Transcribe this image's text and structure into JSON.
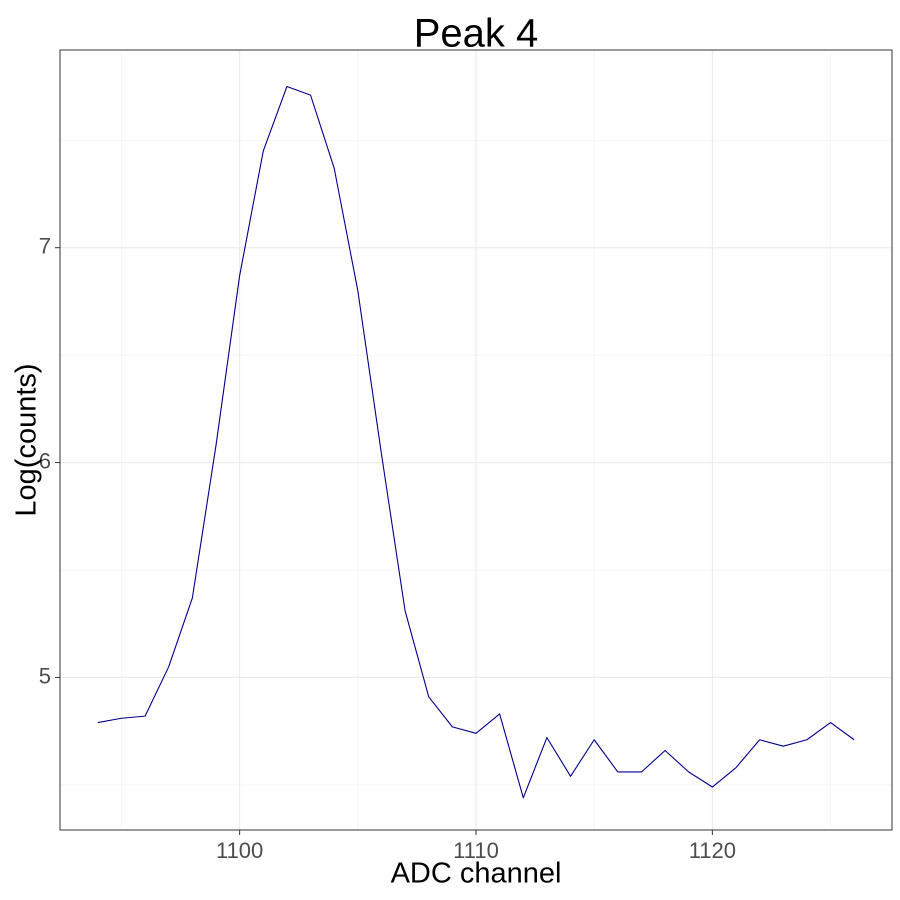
{
  "chart_data": {
    "type": "line",
    "title": "Peak 4",
    "xlabel": "ADC channel",
    "ylabel": "Log(counts)",
    "xlim": [
      1092.4,
      1127.6
    ],
    "ylim": [
      4.29,
      7.92
    ],
    "x_ticks": [
      1100,
      1110,
      1120
    ],
    "x_tick_labels": [
      "1100",
      "1110",
      "1120"
    ],
    "x_minor": [
      1095,
      1105,
      1115,
      1125
    ],
    "y_ticks": [
      5,
      6,
      7
    ],
    "y_tick_labels": [
      "5",
      "6",
      "7"
    ],
    "y_minor": [
      4.5,
      5.5,
      6.5,
      7.5
    ],
    "grid": true,
    "line_color": "#00008B",
    "series": [
      {
        "x": [
          1094,
          1095,
          1096,
          1097,
          1098,
          1099,
          1100,
          1101,
          1102,
          1103,
          1104,
          1105,
          1106,
          1107,
          1108,
          1109,
          1110,
          1111,
          1112,
          1113,
          1114,
          1115,
          1116,
          1117,
          1118,
          1119,
          1120,
          1121,
          1122,
          1123,
          1124,
          1125,
          1126
        ],
        "y": [
          4.79,
          4.81,
          4.82,
          5.05,
          5.37,
          6.08,
          6.87,
          7.45,
          7.75,
          7.71,
          7.37,
          6.8,
          6.04,
          5.31,
          4.91,
          4.77,
          4.74,
          4.83,
          4.44,
          4.72,
          4.54,
          4.71,
          4.56,
          4.56,
          4.66,
          4.56,
          4.49,
          4.58,
          4.71,
          4.68,
          4.71,
          4.79,
          4.71
        ]
      }
    ]
  }
}
